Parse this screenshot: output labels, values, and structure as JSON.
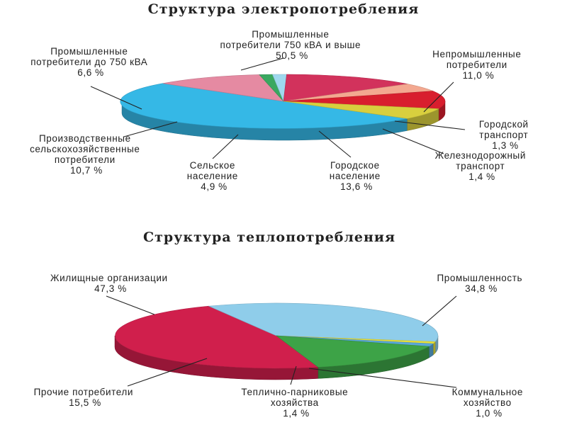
{
  "chart_data": [
    {
      "type": "pie",
      "title": "Структура электропотребления",
      "slices": [
        {
          "label_lines": [
            "Промышленные",
            "потребители 750 кВА и выше",
            "50,5 %"
          ],
          "value": 50.5,
          "color": "#35b8e6"
        },
        {
          "label_lines": [
            "Непромышленные",
            "потребители",
            "11,0 %"
          ],
          "value": 11.0,
          "color": "#e58aa2"
        },
        {
          "label_lines": [
            "Городской",
            "транспорт",
            "1,3 %"
          ],
          "value": 1.3,
          "color": "#3aa860"
        },
        {
          "label_lines": [
            "Железнодорожный",
            "транспорт",
            "1,4 %"
          ],
          "value": 1.4,
          "color": "#9fd8ee"
        },
        {
          "label_lines": [
            "Городское",
            "население",
            "13,6 %"
          ],
          "value": 13.6,
          "color": "#d2325c"
        },
        {
          "label_lines": [
            "Сельское",
            "население",
            "4,9 %"
          ],
          "value": 4.9,
          "color": "#f3a890"
        },
        {
          "label_lines": [
            "Производственные",
            "сельскохозяйственные",
            "потребители",
            "10,7 %"
          ],
          "value": 10.7,
          "color": "#d81e2e"
        },
        {
          "label_lines": [
            "Промышленные",
            "потребители до 750 кВА",
            "6,6 %"
          ],
          "value": 6.6,
          "color": "#d8cf3e"
        }
      ]
    },
    {
      "type": "pie",
      "title": "Структура теплопотребления",
      "slices": [
        {
          "label_lines": [
            "Жилищные организации",
            "47,3 %"
          ],
          "value": 47.3,
          "color": "#d01f4c"
        },
        {
          "label_lines": [
            "Промышленность",
            "34,8 %"
          ],
          "value": 34.8,
          "color": "#8fcdea"
        },
        {
          "label_lines": [
            "Коммунальное",
            "хозяйство",
            "1,0 %"
          ],
          "value": 1.0,
          "color": "#e9e23a"
        },
        {
          "label_lines": [
            "Теплично-парниковые",
            "хозяйства",
            "1,4 %"
          ],
          "value": 1.4,
          "color": "#5aa8d8"
        },
        {
          "label_lines": [
            "Прочие потребители",
            "15,5 %"
          ],
          "value": 15.5,
          "color": "#3da347"
        }
      ]
    }
  ]
}
